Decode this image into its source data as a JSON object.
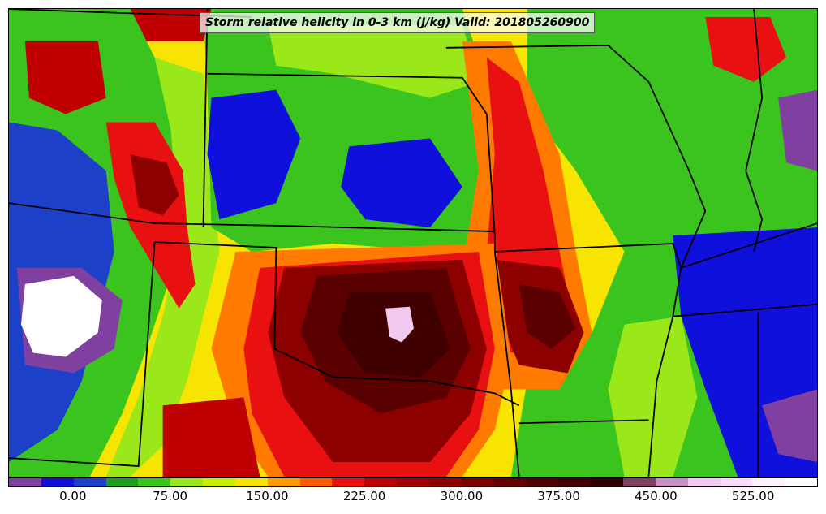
{
  "title": "Storm relative helicity in 0-3 km (J/kg) Valid: 201805260900",
  "map": {
    "background_color": "#f7e400",
    "blob_colors": {
      "green_dark": "#1e9e1e",
      "green": "#3cc41e",
      "lime": "#9be81a",
      "blue": "#1010dc",
      "blue_mid": "#1c40c8",
      "purple": "#8040a0",
      "white": "#ffffff",
      "lavender": "#f0c8f0",
      "orange": "#ff7a00",
      "red": "#e81010",
      "red_dark": "#c00000",
      "maroon": "#8c0000",
      "maroon_dark": "#5a0000",
      "brown": "#400000"
    },
    "boundary_color": "#000000"
  },
  "colorbar": {
    "colors": [
      "#8040a0",
      "#1010dc",
      "#1c40c8",
      "#1e9e1e",
      "#3cc41e",
      "#9be81a",
      "#c8f000",
      "#f7e400",
      "#ff9a00",
      "#ff5a00",
      "#e81010",
      "#c00000",
      "#a00000",
      "#8c0000",
      "#780000",
      "#640000",
      "#500000",
      "#400000",
      "#2e0000",
      "#804060",
      "#c890c0",
      "#f0c8f0",
      "#f8dcf8",
      "#fff0ff",
      "#ffffff"
    ],
    "tick_labels": [
      "0.00",
      "75.00",
      "150.00",
      "225.00",
      "300.00",
      "375.00",
      "450.00",
      "525.00"
    ]
  }
}
